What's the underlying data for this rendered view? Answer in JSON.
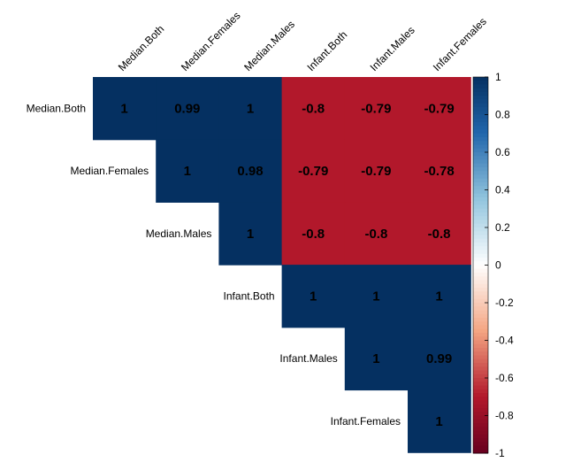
{
  "chart_data": {
    "type": "heatmap",
    "variables": [
      "Median.Both",
      "Median.Females",
      "Median.Males",
      "Infant.Both",
      "Infant.Males",
      "Infant.Females"
    ],
    "layout": "upper-triangle",
    "matrix": [
      [
        1,
        0.99,
        1,
        -0.8,
        -0.79,
        -0.79
      ],
      [
        null,
        1,
        0.98,
        -0.79,
        -0.79,
        -0.78
      ],
      [
        null,
        null,
        1,
        -0.8,
        -0.8,
        -0.8
      ],
      [
        null,
        null,
        null,
        1,
        1,
        1
      ],
      [
        null,
        null,
        null,
        null,
        1,
        0.99
      ],
      [
        null,
        null,
        null,
        null,
        null,
        1
      ]
    ],
    "labels": [
      [
        "1",
        "0.99",
        "1",
        "-0.8",
        "-0.79",
        "-0.79"
      ],
      [
        null,
        "1",
        "0.98",
        "-0.79",
        "-0.79",
        "-0.78"
      ],
      [
        null,
        null,
        "1",
        "-0.8",
        "-0.8",
        "-0.8"
      ],
      [
        null,
        null,
        null,
        "1",
        "1",
        "1"
      ],
      [
        null,
        null,
        null,
        null,
        "1",
        "0.99"
      ],
      [
        null,
        null,
        null,
        null,
        null,
        "1"
      ]
    ],
    "colorbar": {
      "range": [
        -1,
        1
      ],
      "ticks": [
        "1",
        "0.8",
        "0.6",
        "0.4",
        "0.2",
        "0",
        "-0.2",
        "-0.4",
        "-0.6",
        "-0.8",
        "-1"
      ],
      "tick_values": [
        1,
        0.8,
        0.6,
        0.4,
        0.2,
        0,
        -0.2,
        -0.4,
        -0.6,
        -0.8,
        -1
      ],
      "colors": {
        "neg_strong": "#67001F",
        "neg_mid": "#B2182B",
        "neg_light": "#F4A582",
        "zero": "#FFFFFF",
        "pos_light": "#92C5DE",
        "pos_mid": "#2166AC",
        "pos_strong": "#053061"
      }
    },
    "legend": "right",
    "grid": false
  }
}
